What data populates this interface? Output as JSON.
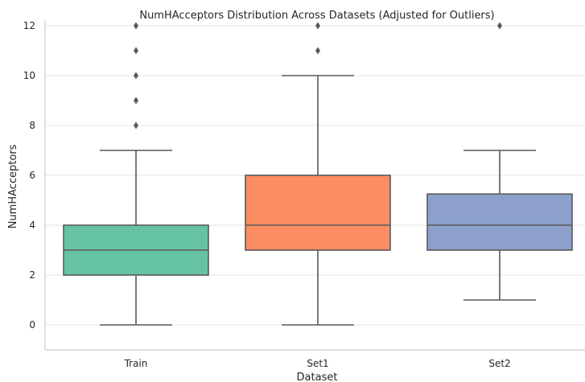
{
  "chart_data": {
    "type": "box",
    "title": "NumHAcceptors Distribution Across Datasets (Adjusted for Outliers)",
    "xlabel": "Dataset",
    "ylabel": "NumHAcceptors",
    "ylim": [
      -1,
      12
    ],
    "yticks": [
      0,
      2,
      4,
      6,
      8,
      10,
      12
    ],
    "grid": "horizontal",
    "categories": [
      "Train",
      "Set1",
      "Set2"
    ],
    "boxes": [
      {
        "category": "Train",
        "whisker_low": 0,
        "q1": 2,
        "median": 3,
        "q3": 4,
        "whisker_high": 7,
        "outliers": [
          8,
          9,
          10,
          11,
          12
        ],
        "color": "#66c2a5"
      },
      {
        "category": "Set1",
        "whisker_low": 0,
        "q1": 3,
        "median": 4,
        "q3": 6,
        "whisker_high": 10,
        "outliers": [
          11,
          12
        ],
        "color": "#fc8d62"
      },
      {
        "category": "Set2",
        "whisker_low": 1,
        "q1": 3,
        "median": 4,
        "q3": 5.25,
        "whisker_high": 7,
        "outliers": [
          12
        ],
        "color": "#8da0cb"
      }
    ]
  }
}
